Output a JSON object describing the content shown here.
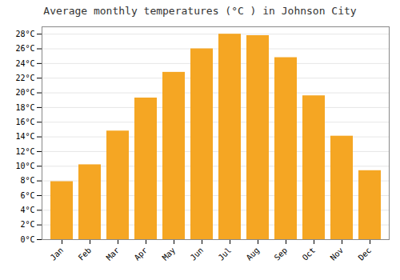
{
  "chart_data": {
    "type": "bar",
    "title": "Average monthly temperatures (°C ) in Johnson City",
    "categories": [
      "Jan",
      "Feb",
      "Mar",
      "Apr",
      "May",
      "Jun",
      "Jul",
      "Aug",
      "Sep",
      "Oct",
      "Nov",
      "Dec"
    ],
    "values": [
      7.9,
      10.2,
      14.8,
      19.3,
      22.8,
      26.0,
      28.0,
      27.8,
      24.8,
      19.6,
      14.1,
      9.4
    ],
    "color": "#F5A623",
    "ylim": [
      0,
      29
    ],
    "yticks": [
      {
        "value": 0,
        "label": "0°C"
      },
      {
        "value": 2,
        "label": "2°C"
      },
      {
        "value": 4,
        "label": "4°C"
      },
      {
        "value": 6,
        "label": "6°C"
      },
      {
        "value": 8,
        "label": "8°C"
      },
      {
        "value": 10,
        "label": "10°C"
      },
      {
        "value": 12,
        "label": "12°C"
      },
      {
        "value": 14,
        "label": "14°C"
      },
      {
        "value": 16,
        "label": "16°C"
      },
      {
        "value": 18,
        "label": "18°C"
      },
      {
        "value": 20,
        "label": "20°C"
      },
      {
        "value": 22,
        "label": "22°C"
      },
      {
        "value": 24,
        "label": "24°C"
      },
      {
        "value": 26,
        "label": "26°C"
      },
      {
        "value": 28,
        "label": "28°C"
      }
    ],
    "grid": true
  }
}
